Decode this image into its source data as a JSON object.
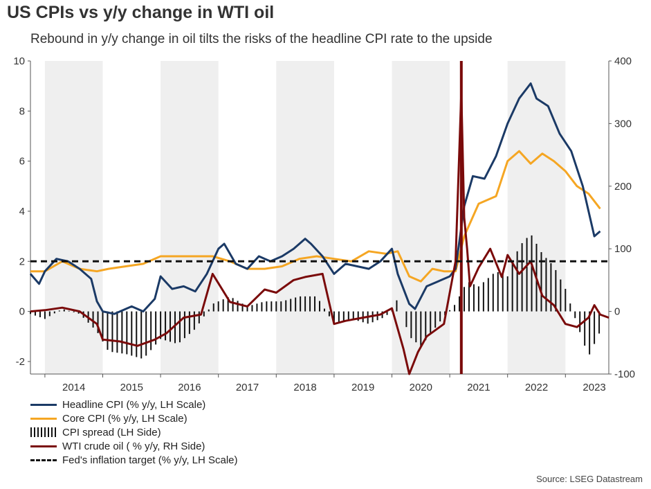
{
  "title": "US CPIs vs y/y change in WTI oil",
  "subtitle": "Rebound in y/y change in oil tilts the risks of the headline CPI rate to the upside",
  "source": "Source: LSEG Datastream",
  "colors": {
    "headline": "#1b3a66",
    "core": "#f5a623",
    "spread": "#111111",
    "wti": "#7a0a0a",
    "target": "#111111",
    "shade": "#efefef"
  },
  "legend": [
    {
      "key": "headline",
      "label": "Headline CPI (% y/y, LH Scale)"
    },
    {
      "key": "core",
      "label": "Core CPI (% y/y, LH Scale)"
    },
    {
      "key": "spread",
      "label": "CPI spread (LH Side)"
    },
    {
      "key": "wti",
      "label": "WTI crude oil ( % y/y, RH Side)"
    },
    {
      "key": "target",
      "label": "Fed's inflation target (% y/y, LH Scale)"
    }
  ],
  "chart_data": {
    "type": "line",
    "x_start": 2013.75,
    "x_end": 2023.75,
    "x_ticks": [
      "2014",
      "2015",
      "2016",
      "2017",
      "2018",
      "2019",
      "2020",
      "2021",
      "2022",
      "2023"
    ],
    "y_left": {
      "min": -2.5,
      "max": 10,
      "ticks": [
        "10",
        "8",
        "6",
        "4",
        "2",
        "0",
        "-2"
      ]
    },
    "y_right": {
      "min": -100,
      "max": 400,
      "ticks": [
        "400",
        "300",
        "200",
        "100",
        "0",
        "-100"
      ]
    },
    "fed_target": 2,
    "series": [
      {
        "name": "Headline CPI (% y/y, LH Scale)",
        "axis": "left",
        "x": [
          2013.75,
          2013.9,
          2014.0,
          2014.2,
          2014.4,
          2014.6,
          2014.8,
          2014.9,
          2015.0,
          2015.2,
          2015.4,
          2015.5,
          2015.7,
          2015.9,
          2016.0,
          2016.2,
          2016.4,
          2016.6,
          2016.8,
          2017.0,
          2017.1,
          2017.3,
          2017.5,
          2017.7,
          2017.9,
          2018.1,
          2018.3,
          2018.5,
          2018.6,
          2018.8,
          2019.0,
          2019.2,
          2019.4,
          2019.6,
          2019.8,
          2020.0,
          2020.1,
          2020.3,
          2020.4,
          2020.6,
          2020.8,
          2021.0,
          2021.1,
          2021.25,
          2021.4,
          2021.6,
          2021.8,
          2022.0,
          2022.2,
          2022.4,
          2022.5,
          2022.7,
          2022.9,
          2023.1,
          2023.3,
          2023.5,
          2023.6
        ],
        "values": [
          1.5,
          1.1,
          1.6,
          2.1,
          2.0,
          1.7,
          1.3,
          0.4,
          0.0,
          -0.1,
          0.1,
          0.2,
          0.0,
          0.5,
          1.4,
          0.9,
          1.0,
          0.8,
          1.5,
          2.5,
          2.7,
          1.9,
          1.7,
          2.2,
          2.0,
          2.2,
          2.5,
          2.9,
          2.7,
          2.2,
          1.5,
          1.9,
          1.8,
          1.7,
          2.0,
          2.5,
          1.5,
          0.3,
          0.1,
          1.0,
          1.2,
          1.4,
          1.7,
          4.2,
          5.4,
          5.3,
          6.2,
          7.5,
          8.5,
          9.1,
          8.5,
          8.2,
          7.1,
          6.4,
          5.0,
          3.0,
          3.2
        ]
      },
      {
        "name": "Core CPI (% y/y, LH Scale)",
        "axis": "left",
        "x": [
          2013.75,
          2014.0,
          2014.3,
          2014.6,
          2014.9,
          2015.1,
          2015.4,
          2015.7,
          2016.0,
          2016.3,
          2016.6,
          2016.9,
          2017.2,
          2017.5,
          2017.8,
          2018.1,
          2018.4,
          2018.7,
          2019.0,
          2019.3,
          2019.6,
          2019.9,
          2020.1,
          2020.3,
          2020.5,
          2020.7,
          2020.9,
          2021.1,
          2021.25,
          2021.5,
          2021.8,
          2022.0,
          2022.2,
          2022.4,
          2022.6,
          2022.8,
          2023.0,
          2023.2,
          2023.4,
          2023.6
        ],
        "values": [
          1.6,
          1.6,
          2.0,
          1.7,
          1.6,
          1.7,
          1.8,
          1.9,
          2.2,
          2.2,
          2.2,
          2.2,
          2.0,
          1.7,
          1.7,
          1.8,
          2.1,
          2.2,
          2.1,
          2.0,
          2.4,
          2.3,
          2.4,
          1.4,
          1.2,
          1.7,
          1.6,
          1.6,
          3.0,
          4.3,
          4.6,
          6.0,
          6.4,
          5.9,
          6.3,
          6.0,
          5.6,
          5.0,
          4.7,
          4.1
        ]
      },
      {
        "name": "WTI crude oil ( % y/y, RH Side)",
        "axis": "right",
        "x": [
          2013.75,
          2014.0,
          2014.3,
          2014.6,
          2014.9,
          2015.0,
          2015.3,
          2015.6,
          2015.9,
          2016.1,
          2016.4,
          2016.7,
          2016.9,
          2017.0,
          2017.2,
          2017.5,
          2017.8,
          2018.0,
          2018.3,
          2018.5,
          2018.8,
          2019.0,
          2019.2,
          2019.5,
          2019.8,
          2020.0,
          2020.2,
          2020.3,
          2020.45,
          2020.6,
          2020.9,
          2021.1,
          2021.2,
          2021.25,
          2021.3,
          2021.35,
          2021.5,
          2021.7,
          2021.9,
          2022.0,
          2022.2,
          2022.4,
          2022.6,
          2022.8,
          2023.0,
          2023.2,
          2023.4,
          2023.5,
          2023.6,
          2023.75
        ],
        "values": [
          0,
          2,
          6,
          0,
          -20,
          -45,
          -48,
          -55,
          -45,
          -35,
          -10,
          -5,
          60,
          45,
          15,
          8,
          35,
          30,
          50,
          55,
          60,
          -20,
          -15,
          -10,
          -5,
          5,
          -60,
          -100,
          -65,
          -40,
          -20,
          80,
          350,
          150,
          100,
          40,
          70,
          100,
          55,
          90,
          60,
          80,
          25,
          10,
          -20,
          -25,
          -10,
          10,
          -5,
          -10
        ]
      }
    ],
    "bar_series": {
      "name": "CPI spread (LH Side)",
      "axis": "left",
      "x": [
        2013.75,
        2014.0,
        2014.3,
        2014.6,
        2014.9,
        2015.1,
        2015.4,
        2015.7,
        2016.0,
        2016.3,
        2016.6,
        2016.9,
        2017.2,
        2017.5,
        2017.8,
        2018.1,
        2018.4,
        2018.7,
        2019.0,
        2019.3,
        2019.6,
        2019.9,
        2020.1,
        2020.3,
        2020.5,
        2020.7,
        2020.9,
        2021.1,
        2021.3,
        2021.5,
        2021.8,
        2022.0,
        2022.2,
        2022.4,
        2022.6,
        2022.8,
        2023.0,
        2023.2,
        2023.4,
        2023.6
      ],
      "values": [
        -0.1,
        -0.3,
        0.1,
        -0.1,
        -0.8,
        -1.6,
        -1.7,
        -1.9,
        -1.1,
        -1.3,
        -0.7,
        0.3,
        0.6,
        0.2,
        0.4,
        0.4,
        0.6,
        0.6,
        -0.5,
        -0.3,
        -0.5,
        -0.2,
        0.5,
        -1.0,
        -1.4,
        -0.8,
        -0.2,
        0.3,
        1.2,
        1.0,
        1.6,
        1.4,
        2.6,
        3.1,
        2.3,
        1.8,
        0.9,
        -0.5,
        -1.8,
        -0.8
      ]
    }
  }
}
